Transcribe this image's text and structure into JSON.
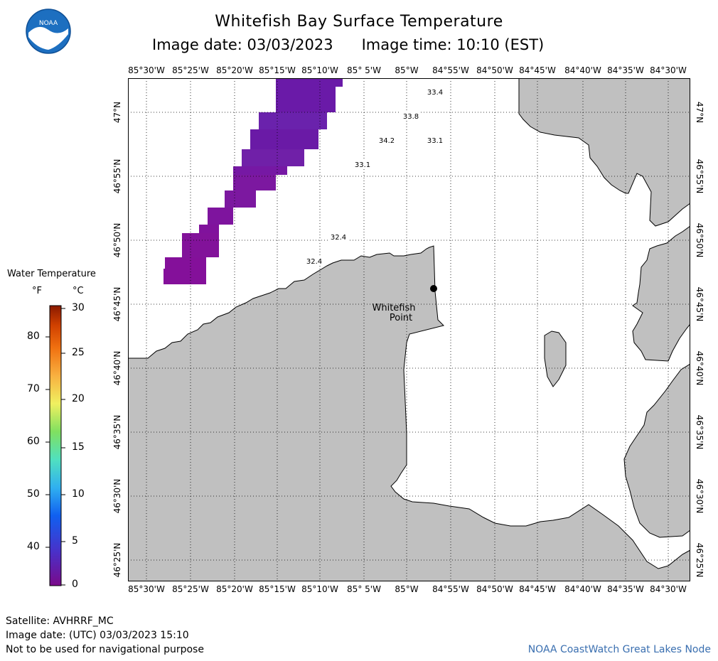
{
  "header": {
    "title": "Whitefish Bay Surface Temperature",
    "date_label": "Image date: 03/03/2023",
    "time_label": "Image time: 10:10 (EST)",
    "logo_text": "NOAA"
  },
  "map": {
    "longitude_ticks": [
      "85°30'W",
      "85°25'W",
      "85°20'W",
      "85°15'W",
      "85°10'W",
      "85° 5'W",
      "85°W",
      "84°55'W",
      "84°50'W",
      "84°45'W",
      "84°40'W",
      "84°35'W",
      "84°30'W"
    ],
    "latitude_ticks": [
      "47°N",
      "46°55'N",
      "46°50'N",
      "46°45'N",
      "46°40'N",
      "46°35'N",
      "46°30'N",
      "46°25'N"
    ],
    "place_label_line1": "Whitefish",
    "place_label_line2": "Point",
    "temperature_labels": [
      {
        "value": "33.4"
      },
      {
        "value": "33.8"
      },
      {
        "value": "34.2"
      },
      {
        "value": "33.1"
      },
      {
        "value": "33.1"
      },
      {
        "value": "32.4"
      },
      {
        "value": "32.4"
      }
    ],
    "colors": {
      "land": "#c0c0c0",
      "water_data": "#7a18a2",
      "grid": "#000000"
    }
  },
  "legend": {
    "title": "Water Temperature",
    "unit_f": "°F",
    "unit_c": "°C",
    "fahrenheit_ticks": [
      "80",
      "70",
      "60",
      "50",
      "40"
    ],
    "celsius_ticks": [
      "30",
      "25",
      "20",
      "15",
      "10",
      "5",
      "0"
    ]
  },
  "footer": {
    "satellite": "Satellite: AVHRRF_MC",
    "utc_date": "Image date: (UTC) 03/03/2023  15:10",
    "disclaimer": "Not to be used for navigational purpose",
    "credit": "NOAA CoastWatch Great Lakes Node"
  }
}
